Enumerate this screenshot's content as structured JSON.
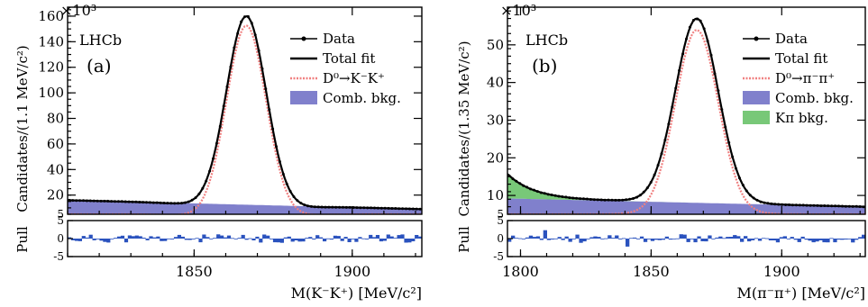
{
  "chart_data": [
    {
      "type": "line",
      "panel_label": "(a)",
      "experiment_label": "LHCb",
      "y_multiplier": "×10³",
      "ylabel": "Candidates/(1.1 MeV/c²)",
      "xlabel": "M(K⁻K⁺) [MeV/c²]",
      "xlim": [
        1810,
        1922
      ],
      "ylim": [
        5,
        167
      ],
      "yticks": [
        20,
        40,
        60,
        80,
        100,
        120,
        140,
        160
      ],
      "xticks": [
        1850,
        1900
      ],
      "pull_label": "Pull",
      "pull_ylim": [
        -5,
        5
      ],
      "pull_ticks": [
        -5,
        0,
        5
      ],
      "legend": {
        "position": "top-right",
        "entries": [
          "Data",
          "Total fit",
          "D⁰→K⁻K⁺",
          "Comb. bkg."
        ]
      },
      "model": {
        "peak_mass": 1866.5,
        "peak_height": 160,
        "signal_sigma": 6.3,
        "signal_amp": 151,
        "bkg_start": 16,
        "bkg_end": 9,
        "bkg2_start": 0,
        "bkg2_end": 0
      },
      "pulls_seed": 11,
      "colors": {
        "data": "#000000",
        "total_fit": "#000000",
        "signal": "#f08080",
        "comb_bkg": "#8080cc",
        "pull_bar": "#2a52be"
      }
    },
    {
      "type": "line",
      "panel_label": "(b)",
      "experiment_label": "LHCb",
      "y_multiplier": "×10³",
      "ylabel": "Candidates/(1.35 MeV/c²)",
      "xlabel": "M(π⁻π⁺) [MeV/c²]",
      "xlim": [
        1795,
        1932
      ],
      "ylim": [
        5,
        60
      ],
      "yticks": [
        10,
        20,
        30,
        40,
        50
      ],
      "xticks": [
        1800,
        1850,
        1900
      ],
      "pull_label": "Pull",
      "pull_ylim": [
        -5,
        5
      ],
      "pull_ticks": [
        -5,
        0,
        5
      ],
      "legend": {
        "position": "top-right",
        "entries": [
          "Data",
          "Total fit",
          "D⁰→π⁻π⁺",
          "Comb. bkg.",
          "Kπ bkg."
        ]
      },
      "model": {
        "peak_mass": 1867.5,
        "peak_height": 57,
        "signal_sigma": 8.2,
        "signal_amp": 48.5,
        "bkg_start": 9.2,
        "bkg_end": 7.0,
        "bkg2_start": 6.5,
        "bkg2_end": 0
      },
      "pulls_seed": 23,
      "colors": {
        "data": "#000000",
        "total_fit": "#000000",
        "signal": "#f08080",
        "comb_bkg": "#8080cc",
        "kpi_bkg": "#78c878",
        "pull_bar": "#2a52be"
      }
    }
  ]
}
